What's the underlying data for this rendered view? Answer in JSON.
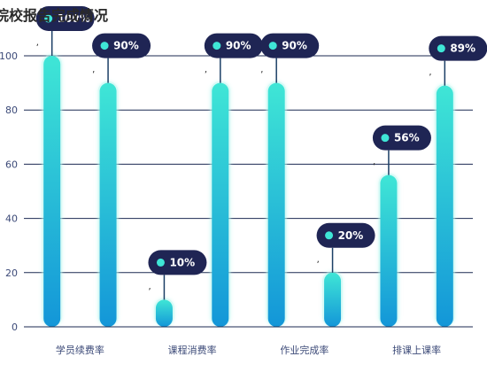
{
  "chart_data": {
    "type": "bar",
    "title": "院校报告完成情况",
    "categories": [
      "学员续费率",
      "",
      "课程消费率",
      "",
      "作业完成率",
      "",
      "排课上课率",
      ""
    ],
    "values": [
      100,
      90,
      10,
      90,
      90,
      20,
      56,
      89
    ],
    "value_labels": [
      "100%",
      "90%",
      "10%",
      "90%",
      "90%",
      "20%",
      "56%",
      "89%"
    ],
    "ylim": [
      0,
      100
    ],
    "yticks": [
      0,
      20,
      40,
      60,
      80,
      100
    ],
    "grid": true,
    "colors": {
      "bar_top": "#3fe6d6",
      "bar_bottom": "#1396d8",
      "bar_glow": "#b8f6ef",
      "tooltip_bg": "#1f2554",
      "dot": "#3fe6d6",
      "grid": "#1b2a52",
      "axis_text": "#3c4a78"
    }
  }
}
